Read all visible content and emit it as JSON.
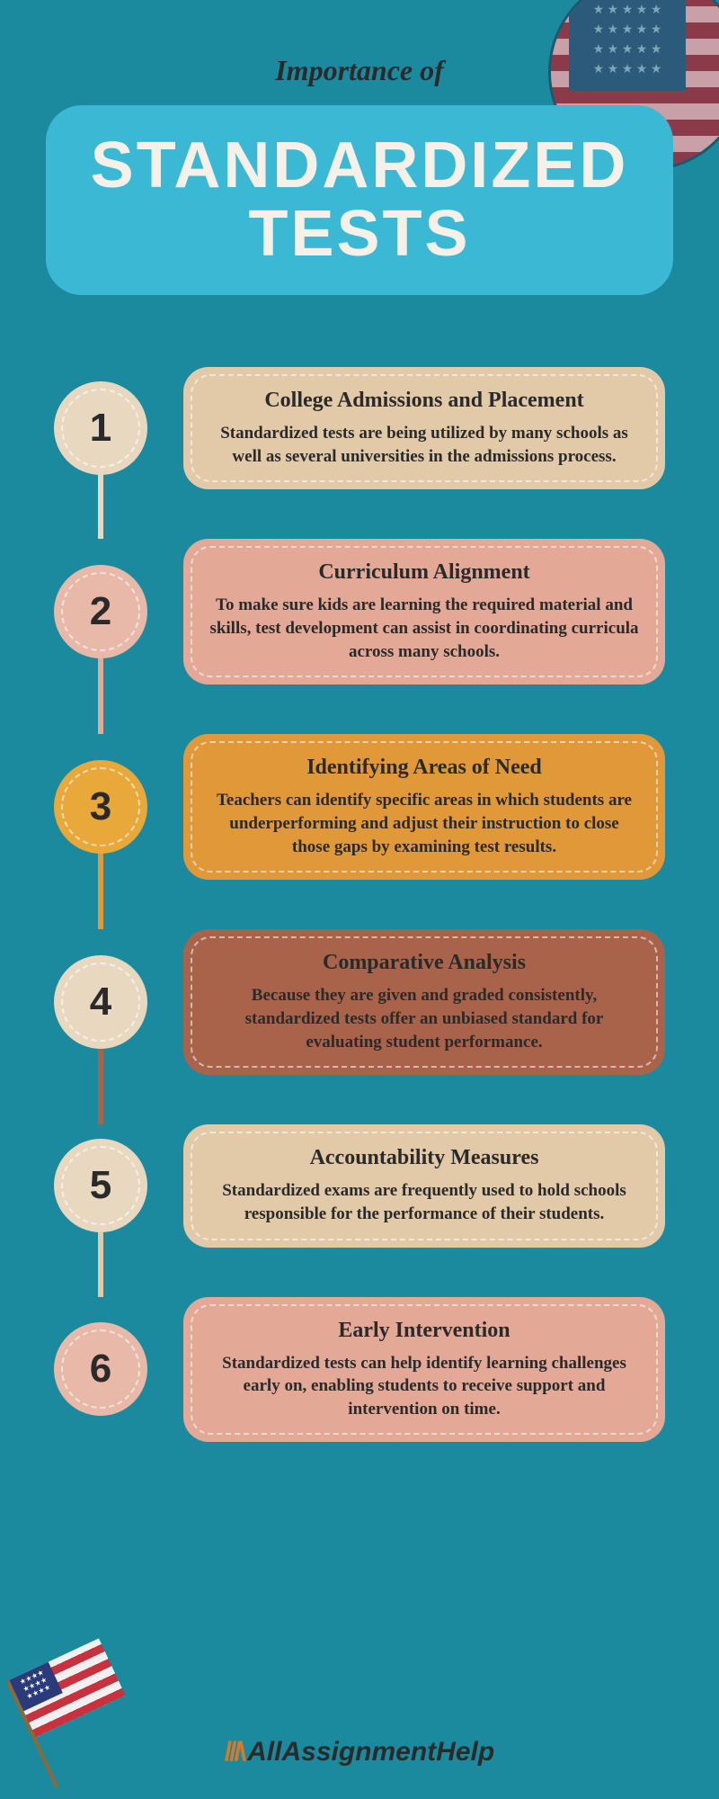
{
  "header": {
    "overline": "Importance of",
    "title_line1": "STANDARDIZED",
    "title_line2": "TESTS",
    "badge_color": "#3bb8d4",
    "title_color": "#f5f0e8"
  },
  "background_color": "#1b8a9e",
  "items": [
    {
      "num": "1",
      "title": "College Admissions and Placement",
      "body": "Standardized tests are being utilized by many schools as well as several universities in the admissions process.",
      "circle_bg": "#e8d8c0",
      "card_bg": "#e2c9a8",
      "connector_color": "#e8d8c0"
    },
    {
      "num": "2",
      "title": "Curriculum Alignment",
      "body": "To make sure kids are learning the required material and skills, test development can assist in coordinating curricula across many schools.",
      "circle_bg": "#e8b8a8",
      "card_bg": "#e4a896",
      "connector_color": "#e4a896"
    },
    {
      "num": "3",
      "title": "Identifying Areas of Need",
      "body": "Teachers can identify specific areas in which students are underperforming and adjust their instruction to close those gaps by examining test results.",
      "circle_bg": "#e8a83a",
      "card_bg": "#e09838",
      "connector_color": "#e09838"
    },
    {
      "num": "4",
      "title": "Comparative Analysis",
      "body": "Because they are given and graded consistently, standardized tests offer an unbiased standard for evaluating student performance.",
      "circle_bg": "#e8d8c0",
      "card_bg": "#a8634a",
      "connector_color": "#a8634a",
      "text_color": "#2a2a2a"
    },
    {
      "num": "5",
      "title": "Accountability Measures",
      "body": "Standardized exams are frequently used to hold schools responsible for the performance of their students.",
      "circle_bg": "#e8d8c0",
      "card_bg": "#e2c9a8",
      "connector_color": "#e2c9a8"
    },
    {
      "num": "6",
      "title": "Early Intervention",
      "body": "Standardized tests can help identify learning challenges early on, enabling students to receive support and intervention on time.",
      "circle_bg": "#e8b8a8",
      "card_bg": "#e4a896",
      "connector_color": "#e4a896"
    }
  ],
  "footer": {
    "brand": "AllAssignmentHelp"
  }
}
